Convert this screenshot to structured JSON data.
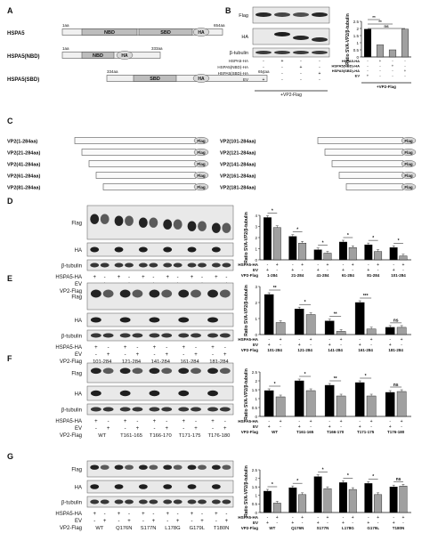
{
  "panels": {
    "A": {
      "label": "A",
      "constructs": [
        {
          "name": "HSPA5",
          "start": "1aa",
          "end": "654aa",
          "domains": [
            "NBD",
            "SBD"
          ],
          "tag": "HA"
        },
        {
          "name": "HSPA5(NBD)",
          "start": "1aa",
          "end": "333aa",
          "domains": [
            "NBD"
          ],
          "tag": "HA"
        },
        {
          "name": "HSPA5(SBD)",
          "start": "334aa",
          "end": "654aa",
          "domains": [
            "SBD"
          ],
          "tag": "HA"
        }
      ]
    },
    "B": {
      "label": "B",
      "blot_rows": [
        "Flag",
        "HA",
        "β-tubulin"
      ],
      "cond_labels": [
        "HSPA5-HA",
        "HSPA5(NBD)-HA",
        "HSPA5(SBD)-HA",
        "EV"
      ],
      "cond_signs": [
        [
          "-",
          "+",
          "-",
          "-"
        ],
        [
          "-",
          "-",
          "+",
          "-"
        ],
        [
          "-",
          "-",
          "-",
          "+"
        ],
        [
          "+",
          "-",
          "-",
          "-"
        ]
      ],
      "bottom": "+VP2-Flag",
      "chart_data": {
        "type": "bar",
        "ylabel": "Ratio SVA-VP2/β-tubulin",
        "ylim": [
          0,
          2.5
        ],
        "yticks": [
          0,
          0.5,
          1.0,
          1.5,
          2.0,
          2.5
        ],
        "values": [
          1.95,
          0.85,
          0.5,
          1.95
        ],
        "colors": [
          "#000000",
          "#a0a0a0",
          "#a0a0a0",
          "#a0a0a0"
        ],
        "cond_labels": [
          "HSPA5-HA",
          "HSPA5(NBD)-HA",
          "HSPA5(SBD)-HA",
          "EV"
        ],
        "cond_signs": [
          [
            "-",
            "+",
            "-",
            "-"
          ],
          [
            "-",
            "-",
            "+",
            "-"
          ],
          [
            "-",
            "-",
            "-",
            "+"
          ],
          [
            "+",
            "-",
            "-",
            "-"
          ]
        ],
        "bottom": "+VP2-Flag",
        "sig": [
          {
            "a": 0,
            "b": 1,
            "t": "**"
          },
          {
            "a": 0,
            "b": 2,
            "t": "**"
          },
          {
            "a": 0,
            "b": 3,
            "t": "ns"
          }
        ]
      }
    },
    "C": {
      "label": "C",
      "left": [
        "VP2(1-284aa)",
        "VP2(21-284aa)",
        "VP2(41-284aa)",
        "VP2(61-284aa)",
        "VP2(81-284aa)"
      ],
      "right": [
        "VP2(101-284aa)",
        "VP2(121-284aa)",
        "VP2(141-284aa)",
        "VP2(161-284aa)",
        "VP2(181-284aa)"
      ],
      "tag": "Flag"
    },
    "D": {
      "label": "D",
      "blot_rows": [
        "Flag",
        "HA",
        "β-tubulin"
      ],
      "row_labels": [
        "HSPA5-HA",
        "EV",
        "VP2-Flag"
      ],
      "groups": [
        "1-284",
        "21-284",
        "41-284",
        "61-284",
        "81-284",
        "101-284"
      ],
      "chart_data": {
        "type": "bar",
        "ylabel": "Ratio SVA-VP2/β-tubulin",
        "ylim": [
          0,
          4
        ],
        "yticks": [
          0,
          1,
          2,
          3,
          4
        ],
        "categories": [
          "1-284",
          "21-284",
          "41-284",
          "61-284",
          "81-284",
          "101-284"
        ],
        "series": [
          {
            "name": "EV",
            "color": "#000000",
            "values": [
              3.8,
              2.1,
              0.9,
              1.6,
              1.35,
              1.1
            ]
          },
          {
            "name": "HSPA5-HA",
            "color": "#a0a0a0",
            "values": [
              2.9,
              1.5,
              0.6,
              1.1,
              0.75,
              0.35
            ]
          }
        ],
        "sig": [
          "*",
          "*",
          "*",
          "*",
          "*",
          "*"
        ],
        "row_labels": [
          "HSPA5-HA",
          "EV",
          "VP2-Flag"
        ]
      }
    },
    "E": {
      "label": "E",
      "blot_rows": [
        "Flag",
        "HA",
        "β-tubulin"
      ],
      "row_labels": [
        "HSPA5-HA",
        "EV",
        "VP2-Flag"
      ],
      "groups": [
        "101-284",
        "121-284",
        "141-284",
        "161-284",
        "181-284"
      ],
      "chart_data": {
        "type": "bar",
        "ylabel": "Ratio SVA-VP2/β-tubulin",
        "ylim": [
          0,
          3
        ],
        "yticks": [
          0,
          1,
          2,
          3
        ],
        "categories": [
          "101-284",
          "121-284",
          "141-284",
          "161-284",
          "181-284"
        ],
        "series": [
          {
            "name": "EV",
            "color": "#000000",
            "values": [
              2.5,
              1.6,
              0.85,
              2.0,
              0.45
            ]
          },
          {
            "name": "HSPA5-HA",
            "color": "#a0a0a0",
            "values": [
              0.75,
              1.25,
              0.2,
              0.35,
              0.45
            ]
          }
        ],
        "sig": [
          "**",
          "*",
          "**",
          "***",
          "ns"
        ],
        "row_labels": [
          "HSPA5-HA",
          "EV",
          "VP2-Flag"
        ]
      }
    },
    "F": {
      "label": "F",
      "blot_rows": [
        "Flag",
        "HA",
        "β-tubulin"
      ],
      "row_labels": [
        "HSPA5-HA",
        "EV",
        "VP2-Flag"
      ],
      "groups": [
        "WT",
        "T161-165",
        "T166-170",
        "T171-175",
        "T176-180"
      ],
      "chart_data": {
        "type": "bar",
        "ylabel": "Ratio SVA-VP2/β-tubulin",
        "ylim": [
          0,
          2.5
        ],
        "yticks": [
          0,
          0.5,
          1.0,
          1.5,
          2.0,
          2.5
        ],
        "categories": [
          "WT",
          "T161-165",
          "T166-170",
          "T171-175",
          "T176-180"
        ],
        "series": [
          {
            "name": "EV",
            "color": "#000000",
            "values": [
              1.45,
              2.0,
              1.75,
              1.9,
              1.35
            ]
          },
          {
            "name": "HSPA5-HA",
            "color": "#a0a0a0",
            "values": [
              1.1,
              1.45,
              1.15,
              1.15,
              1.4
            ]
          }
        ],
        "sig": [
          "*",
          "*",
          "**",
          "*",
          "ns"
        ],
        "row_labels": [
          "HSPA5-HA",
          "EV",
          "VP2-Flag"
        ]
      }
    },
    "G": {
      "label": "G",
      "blot_rows": [
        "Flag",
        "HA",
        "β-tubulin"
      ],
      "row_labels": [
        "HSPA5-HA",
        "EV",
        "VP2-Flag"
      ],
      "groups": [
        "WT",
        "Q176N",
        "S177N",
        "L178G",
        "G179L",
        "T180N"
      ],
      "chart_data": {
        "type": "bar",
        "ylabel": "Ratio SVA-VP2/β-tubulin",
        "ylim": [
          0,
          2.5
        ],
        "yticks": [
          0,
          0.5,
          1.0,
          1.5,
          2.0,
          2.5
        ],
        "categories": [
          "WT",
          "Q176N",
          "S177N",
          "L178G",
          "G179L",
          "T180N"
        ],
        "series": [
          {
            "name": "EV",
            "color": "#000000",
            "values": [
              1.25,
              1.45,
              2.1,
              1.75,
              1.7,
              1.5
            ]
          },
          {
            "name": "HSPA5-HA",
            "color": "#a0a0a0",
            "values": [
              0.55,
              1.05,
              1.4,
              1.35,
              1.05,
              1.55
            ]
          }
        ],
        "sig": [
          "*",
          "*",
          "*",
          "*",
          "*",
          "ns"
        ],
        "row_labels": [
          "HSPA5-HA",
          "EV",
          "VP2-Flag"
        ]
      }
    }
  }
}
